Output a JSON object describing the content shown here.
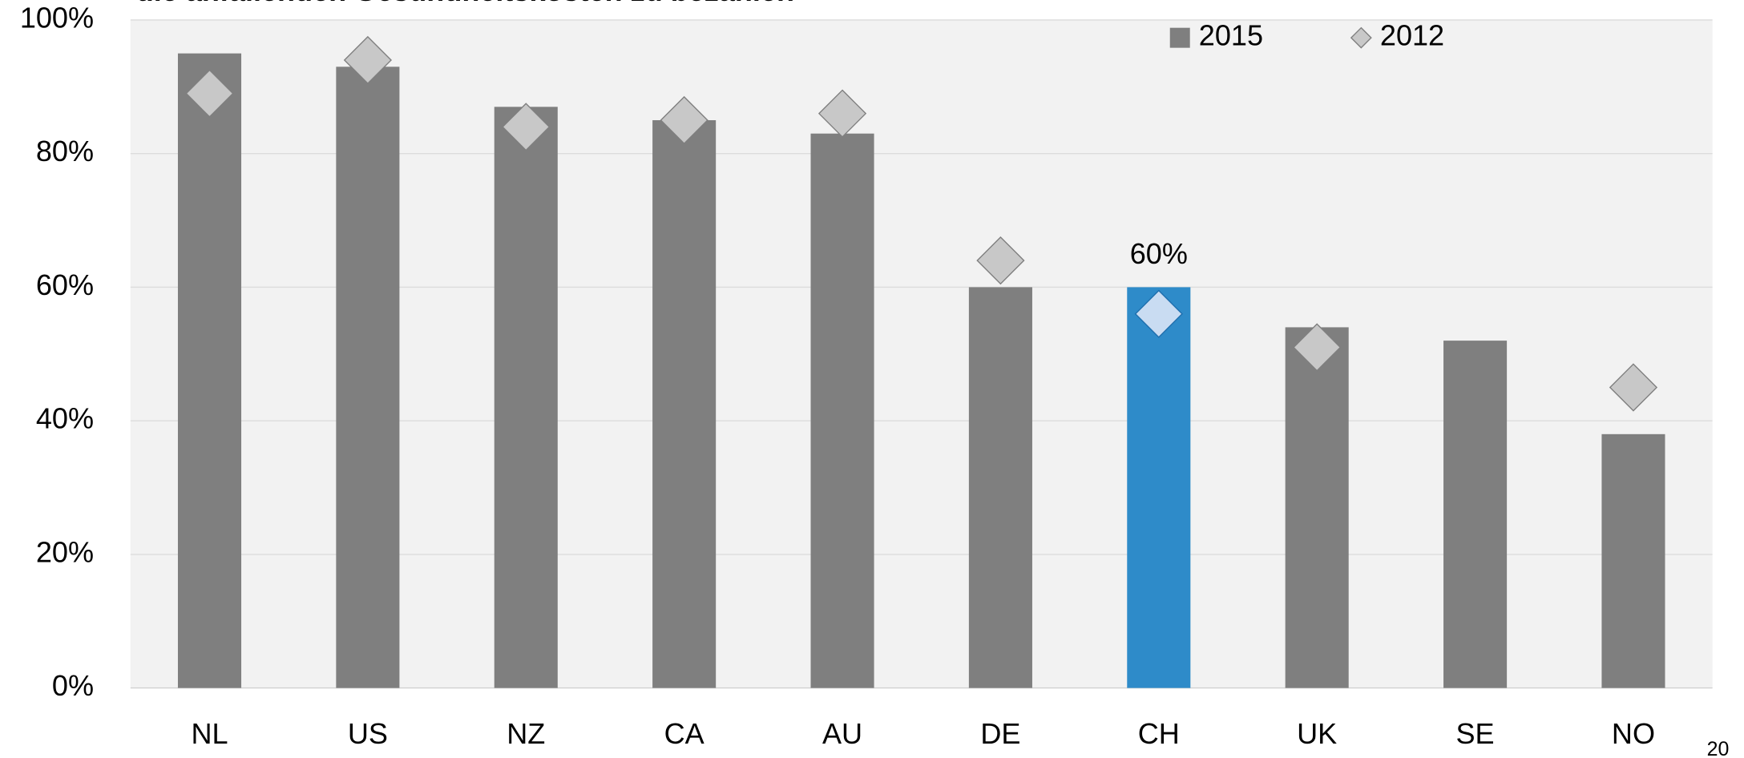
{
  "chart_data": {
    "type": "bar",
    "title": "die anfallenden Gesundheitskosten zu bezahlen",
    "categories": [
      "NL",
      "US",
      "NZ",
      "CA",
      "AU",
      "DE",
      "CH",
      "UK",
      "SE",
      "NO"
    ],
    "series": [
      {
        "name": "2015",
        "marker": "bar",
        "color": "#7f7f7f",
        "colors": [
          "#7f7f7f",
          "#7f7f7f",
          "#7f7f7f",
          "#7f7f7f",
          "#7f7f7f",
          "#7f7f7f",
          "#2e8bc9",
          "#7f7f7f",
          "#7f7f7f",
          "#7f7f7f"
        ],
        "values": [
          95,
          93,
          87,
          85,
          83,
          60,
          60,
          54,
          52,
          38
        ],
        "value_labels": [
          null,
          null,
          null,
          null,
          null,
          null,
          "60%",
          null,
          null,
          null
        ]
      },
      {
        "name": "2012",
        "marker": "diamond",
        "color": "#c8c8c8",
        "colors": [
          "#c8c8c8",
          "#c8c8c8",
          "#c8c8c8",
          "#c8c8c8",
          "#c8c8c8",
          "#c8c8c8",
          "#c9dcf2",
          "#c8c8c8",
          "#c8c8c8",
          "#c8c8c8"
        ],
        "values": [
          89,
          94,
          84,
          85,
          86,
          64,
          56,
          51,
          null,
          45
        ]
      }
    ],
    "ylim": [
      0,
      100
    ],
    "yticks": [
      {
        "value": 0,
        "label": "0%"
      },
      {
        "value": 20,
        "label": "20%"
      },
      {
        "value": 40,
        "label": "40%"
      },
      {
        "value": 60,
        "label": "60%"
      },
      {
        "value": 80,
        "label": "80%"
      },
      {
        "value": 100,
        "label": "100%"
      }
    ],
    "grid": true,
    "legend": "top",
    "page_number": "20"
  }
}
